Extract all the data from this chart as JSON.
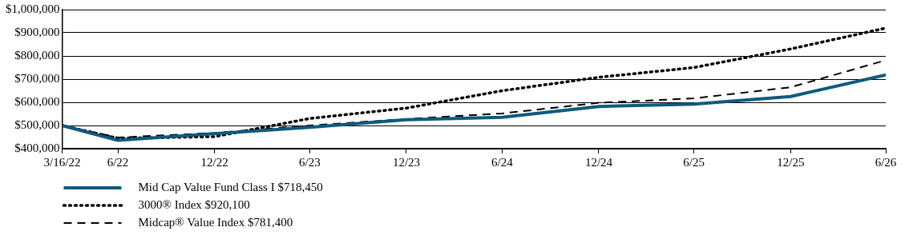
{
  "chart_data": {
    "type": "line",
    "x": [
      "2022-03-16",
      "2022-06-30",
      "2022-12-31",
      "2023-06-30",
      "2023-12-31",
      "2024-06-30",
      "2024-12-31",
      "2025-06-30",
      "2025-12-31",
      "2026-06-30"
    ],
    "series": [
      {
        "name": "Mid Cap Value Fund Class I $718,450",
        "color": "#0e5a7e",
        "line_style": "solid",
        "values": [
          500000,
          436000,
          465000,
          492000,
          525000,
          535000,
          582000,
          592000,
          625000,
          718450
        ]
      },
      {
        "name": "3000® Index $920,100",
        "color": "#000000",
        "line_style": "dotted",
        "values": [
          500000,
          445000,
          452000,
          530000,
          575000,
          650000,
          708000,
          750000,
          830000,
          920100
        ]
      },
      {
        "name": "Midcap® Value Index $781,400",
        "color": "#000000",
        "line_style": "dashed",
        "values": [
          500000,
          448000,
          468000,
          500000,
          528000,
          552000,
          598000,
          617000,
          665000,
          781400
        ]
      }
    ],
    "xlim": [
      "2022-03-16",
      "2026-06-30"
    ],
    "xticks": [
      {
        "value": "2022-03-16",
        "label": "3/16/22"
      },
      {
        "value": "2022-06-30",
        "label": "6/22"
      },
      {
        "value": "2022-12-31",
        "label": "12/22"
      },
      {
        "value": "2023-06-30",
        "label": "6/23"
      },
      {
        "value": "2023-12-31",
        "label": "12/23"
      },
      {
        "value": "2024-06-30",
        "label": "6/24"
      },
      {
        "value": "2024-12-31",
        "label": "12/24"
      },
      {
        "value": "2025-06-30",
        "label": "6/25"
      },
      {
        "value": "2025-12-31",
        "label": "12/25"
      },
      {
        "value": "2026-06-30",
        "label": "6/26"
      }
    ],
    "ylim": [
      400000,
      1000000
    ],
    "yticks": [
      {
        "value": 400000,
        "label": "$400,000"
      },
      {
        "value": 500000,
        "label": "$500,000"
      },
      {
        "value": 600000,
        "label": "$600,000"
      },
      {
        "value": 700000,
        "label": "$700,000"
      },
      {
        "value": 800000,
        "label": "$800,000"
      },
      {
        "value": 900000,
        "label": "$900,000"
      },
      {
        "value": 1000000,
        "label": "$1,000,000"
      }
    ],
    "grid": "y",
    "legend": "bottom",
    "marker": "none"
  }
}
